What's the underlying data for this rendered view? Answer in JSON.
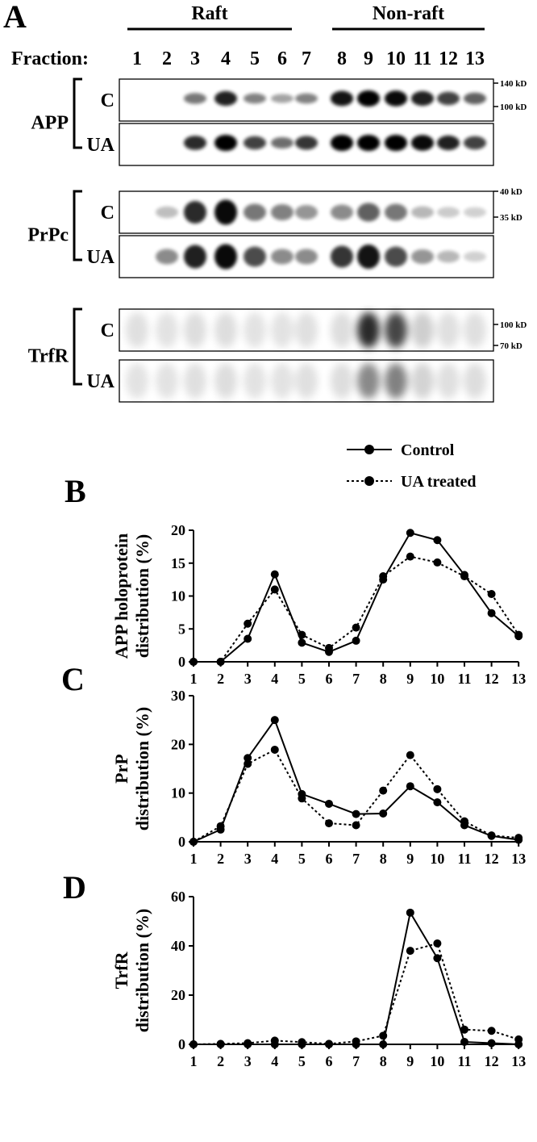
{
  "panel_letters": [
    "A",
    "B",
    "C",
    "D"
  ],
  "blot": {
    "fraction_label": "Fraction:",
    "fractions": [
      "1",
      "2",
      "3",
      "4",
      "5",
      "6",
      "7",
      "8",
      "9",
      "10",
      "11",
      "12",
      "13"
    ],
    "groups": [
      {
        "label": "Raft",
        "from": 1,
        "to": 6
      },
      {
        "label": "Non-raft",
        "from": 8,
        "to": 13
      }
    ],
    "proteins": [
      {
        "name": "APP",
        "rows": [
          {
            "condition": "C",
            "bands": [
              0,
              0,
              0.45,
              0.85,
              0.4,
              0.25,
              0.4,
              0.9,
              1.0,
              0.95,
              0.85,
              0.7,
              0.55
            ]
          },
          {
            "condition": "UA",
            "bands": [
              0,
              0,
              0.8,
              1.0,
              0.7,
              0.5,
              0.75,
              1.0,
              1.0,
              1.0,
              0.95,
              0.85,
              0.7
            ]
          }
        ],
        "markers": [
          "140 kD",
          "100 kD"
        ]
      },
      {
        "name": "PrPc",
        "rows": [
          {
            "condition": "C",
            "bands": [
              0,
              0.12,
              0.8,
              0.95,
              0.45,
              0.4,
              0.3,
              0.35,
              0.55,
              0.45,
              0.15,
              0.06,
              0.03
            ]
          },
          {
            "condition": "UA",
            "bands": [
              0,
              0.35,
              0.85,
              0.95,
              0.65,
              0.35,
              0.35,
              0.75,
              0.9,
              0.65,
              0.3,
              0.15,
              0.04
            ]
          }
        ],
        "markers": [
          "40 kD",
          "35 kD"
        ]
      },
      {
        "name": "TrfR",
        "rows": [
          {
            "condition": "C",
            "bands": [
              0.05,
              0.04,
              0.06,
              0.07,
              0.04,
              0.04,
              0.05,
              0.06,
              1.0,
              0.85,
              0.15,
              0.05,
              0.05
            ]
          },
          {
            "condition": "UA",
            "bands": [
              0.04,
              0.04,
              0.05,
              0.06,
              0.04,
              0.04,
              0.05,
              0.06,
              0.5,
              0.55,
              0.12,
              0.05,
              0.06
            ]
          }
        ],
        "markers": [
          "100 kD",
          "70 kD"
        ]
      }
    ]
  },
  "legend": {
    "entries": [
      {
        "label": "Control",
        "style": "solid"
      },
      {
        "label": "UA treated",
        "style": "dotted"
      }
    ]
  },
  "chart_data": [
    {
      "type": "line",
      "panel": "B",
      "ylabel_lines": [
        "APP holoprotein",
        "distribution (%)"
      ],
      "x": [
        1,
        2,
        3,
        4,
        5,
        6,
        7,
        8,
        9,
        10,
        11,
        12,
        13
      ],
      "ylim": [
        0,
        20
      ],
      "yticks": [
        0,
        5,
        10,
        15,
        20
      ],
      "series": [
        {
          "name": "Control",
          "style": "solid",
          "values": [
            0,
            0,
            3.5,
            13.3,
            2.9,
            1.5,
            3.2,
            12.5,
            19.6,
            18.5,
            13.2,
            7.4,
            3.9
          ]
        },
        {
          "name": "UA treated",
          "style": "dotted",
          "values": [
            0,
            0,
            5.8,
            11.0,
            4.1,
            2.1,
            5.2,
            13.0,
            16.0,
            15.1,
            13.0,
            10.3,
            4.1
          ]
        }
      ]
    },
    {
      "type": "line",
      "panel": "C",
      "ylabel_lines": [
        "PrP",
        "distribution (%)"
      ],
      "x": [
        1,
        2,
        3,
        4,
        5,
        6,
        7,
        8,
        9,
        10,
        11,
        12,
        13
      ],
      "ylim": [
        0,
        30
      ],
      "yticks": [
        0,
        10,
        20,
        30
      ],
      "series": [
        {
          "name": "Control",
          "style": "solid",
          "values": [
            0,
            2.5,
            17.2,
            25.0,
            9.8,
            7.8,
            5.7,
            5.8,
            11.4,
            8.1,
            3.4,
            1.2,
            0.4
          ]
        },
        {
          "name": "UA treated",
          "style": "dotted",
          "values": [
            0,
            3.2,
            16.0,
            18.9,
            8.9,
            3.8,
            3.4,
            10.5,
            17.8,
            10.8,
            4.2,
            1.3,
            0.8
          ]
        }
      ]
    },
    {
      "type": "line",
      "panel": "D",
      "ylabel_lines": [
        "TrfR",
        "distribution (%)"
      ],
      "x": [
        1,
        2,
        3,
        4,
        5,
        6,
        7,
        8,
        9,
        10,
        11,
        12,
        13
      ],
      "ylim": [
        0,
        60
      ],
      "yticks": [
        0,
        20,
        40,
        60
      ],
      "series": [
        {
          "name": "Control",
          "style": "solid",
          "values": [
            0,
            0,
            0,
            0,
            0,
            0,
            0,
            0,
            53.5,
            35.0,
            1.0,
            0.5,
            0
          ]
        },
        {
          "name": "UA treated",
          "style": "dotted",
          "values": [
            0,
            0.2,
            0.5,
            1.5,
            0.9,
            0.2,
            1.2,
            3.5,
            38.0,
            41.0,
            6.0,
            5.5,
            2.0
          ]
        }
      ]
    }
  ]
}
